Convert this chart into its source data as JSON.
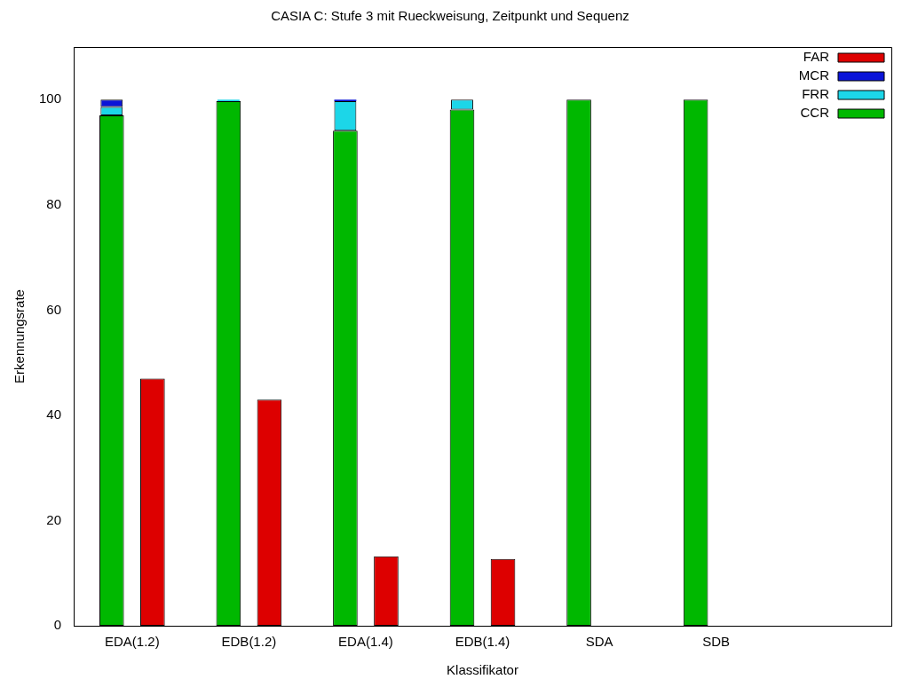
{
  "chart_data": {
    "type": "bar",
    "title": "CASIA C: Stufe 3 mit Rueckweisung, Zeitpunkt und Sequenz",
    "xlabel": "Klassifikator",
    "ylabel": "Erkennungsrate",
    "categories": [
      "EDA(1.2)",
      "EDB(1.2)",
      "EDA(1.4)",
      "EDB(1.4)",
      "SDA",
      "SDB",
      null
    ],
    "series": [
      {
        "name": "CCR",
        "color": "#00b800",
        "values": [
          97.0,
          99.7,
          94.1,
          98.1,
          100,
          100,
          null
        ]
      },
      {
        "name": "FRR",
        "color": "#1cd6e8",
        "values": [
          1.6,
          0.3,
          5.6,
          1.9,
          null,
          null,
          null
        ],
        "base": [
          97.0,
          99.7,
          94.1,
          98.1,
          null,
          null,
          null
        ]
      },
      {
        "name": "MCR",
        "color": "#0a14d8",
        "values": [
          1.4,
          null,
          0.3,
          null,
          null,
          null,
          null
        ],
        "base": [
          98.6,
          null,
          99.7,
          null,
          null,
          null,
          null
        ]
      },
      {
        "name": "FAR",
        "color": "#dd0000",
        "values": [
          47.0,
          43.0,
          13.2,
          12.7,
          0,
          0,
          null
        ]
      }
    ],
    "ylim": [
      0,
      110
    ],
    "yticks": [
      0,
      20,
      40,
      60,
      80,
      100
    ],
    "grid": false,
    "legend": "top right"
  }
}
